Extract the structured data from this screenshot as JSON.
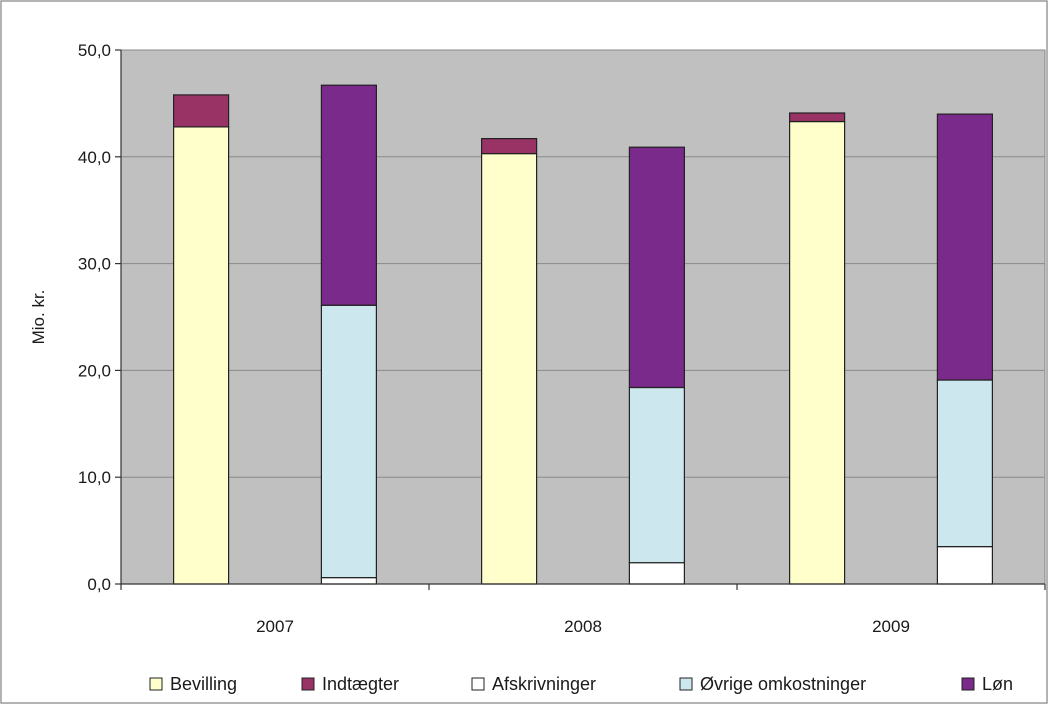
{
  "chart_data": {
    "type": "bar",
    "stacked": true,
    "ylabel": "Mio. kr.",
    "ylim": [
      0,
      50
    ],
    "yticks": [
      "0,0",
      "10,0",
      "20,0",
      "30,0",
      "40,0",
      "50,0"
    ],
    "categories": [
      "2007",
      "2008",
      "2009"
    ],
    "stacks": [
      {
        "category": "2007",
        "segments": [
          {
            "series": "Bevilling",
            "value": 42.8
          },
          {
            "series": "Indtægter",
            "value": 3.0
          }
        ]
      },
      {
        "category": "2007",
        "segments": [
          {
            "series": "Afskrivninger",
            "value": 0.6
          },
          {
            "series": "Øvrige omkostninger",
            "value": 25.5
          },
          {
            "series": "Løn",
            "value": 20.6
          }
        ]
      },
      {
        "category": "2008",
        "segments": [
          {
            "series": "Bevilling",
            "value": 40.3
          },
          {
            "series": "Indtægter",
            "value": 1.4
          }
        ]
      },
      {
        "category": "2008",
        "segments": [
          {
            "series": "Afskrivninger",
            "value": 2.0
          },
          {
            "series": "Øvrige omkostninger",
            "value": 16.4
          },
          {
            "series": "Løn",
            "value": 22.5
          }
        ]
      },
      {
        "category": "2009",
        "segments": [
          {
            "series": "Bevilling",
            "value": 43.3
          },
          {
            "series": "Indtægter",
            "value": 0.8
          }
        ]
      },
      {
        "category": "2009",
        "segments": [
          {
            "series": "Afskrivninger",
            "value": 3.5
          },
          {
            "series": "Øvrige omkostninger",
            "value": 15.6
          },
          {
            "series": "Løn",
            "value": 24.9
          }
        ]
      }
    ],
    "legend": [
      {
        "name": "Bevilling",
        "color": "#ffffcc"
      },
      {
        "name": "Indtægter",
        "color": "#993366"
      },
      {
        "name": "Afskrivninger",
        "color": "#ffffff"
      },
      {
        "name": "Øvrige omkostninger",
        "color": "#cce8ee"
      },
      {
        "name": "Løn",
        "color": "#7a2a8a"
      }
    ],
    "legend_position": "bottom",
    "grid": true,
    "plot_background": "#c0c0c0"
  }
}
